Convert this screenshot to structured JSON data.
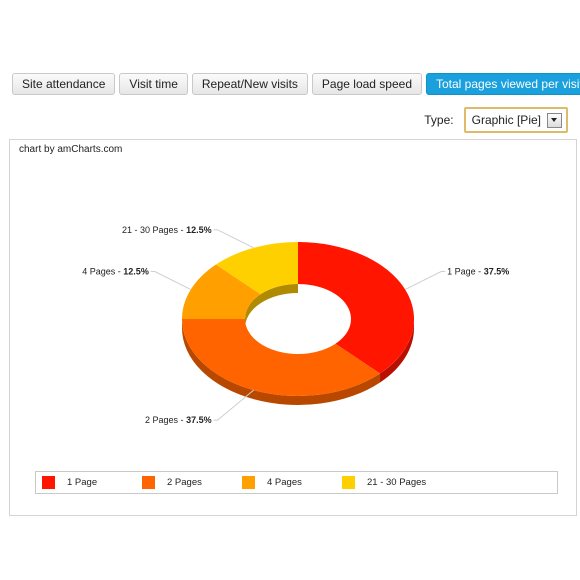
{
  "tabs": [
    {
      "label": "Site attendance",
      "active": false
    },
    {
      "label": "Visit time",
      "active": false
    },
    {
      "label": "Repeat/New visits",
      "active": false
    },
    {
      "label": "Page load speed",
      "active": false
    },
    {
      "label": "Total pages viewed per visitor",
      "active": true
    }
  ],
  "type_selector": {
    "label": "Type:",
    "value": "Graphic [Pie]"
  },
  "chart": {
    "credit": "chart by amCharts.com"
  },
  "chart_data": {
    "type": "pie",
    "style": "donut-3d",
    "slices": [
      {
        "label": "1 Page",
        "value": 37.5,
        "value_text": "37.5%",
        "color": "#ff1500"
      },
      {
        "label": "2 Pages",
        "value": 37.5,
        "value_text": "37.5%",
        "color": "#ff6400"
      },
      {
        "label": "4 Pages",
        "value": 12.5,
        "value_text": "12.5%",
        "color": "#ffa000"
      },
      {
        "label": "21 - 30 Pages",
        "value": 12.5,
        "value_text": "12.5%",
        "color": "#ffd000"
      }
    ],
    "legend_position": "bottom"
  }
}
